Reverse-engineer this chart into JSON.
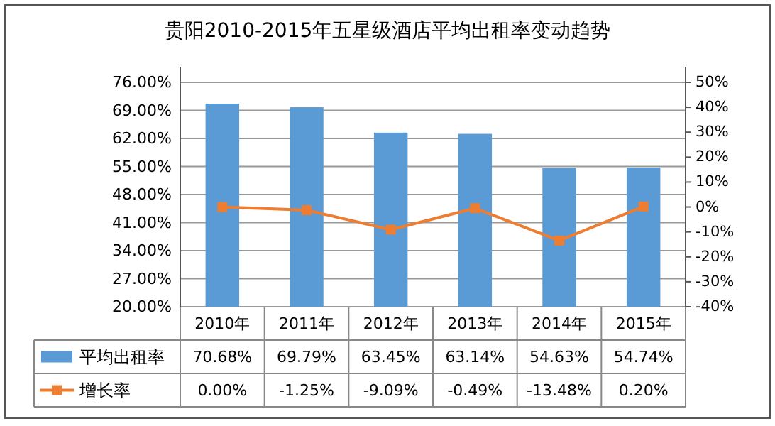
{
  "chart_data": {
    "type": "bar",
    "title": "贵阳2010-2015年五星级酒店平均出租率变动趋势",
    "categories": [
      "2010年",
      "2011年",
      "2012年",
      "2013年",
      "2014年",
      "2015年"
    ],
    "series": [
      {
        "name": "平均出租率",
        "color": "#5b9bd5",
        "values": [
          70.68,
          69.79,
          63.45,
          63.14,
          54.63,
          54.74
        ],
        "value_labels": [
          "70.68%",
          "69.79%",
          "63.45%",
          "63.14%",
          "54.63%",
          "54.74%"
        ]
      },
      {
        "name": "增长率",
        "type": "line",
        "axis": "y2",
        "color": "#ed7d31",
        "values": [
          0.0,
          -1.25,
          -9.09,
          -0.49,
          -13.48,
          0.2
        ],
        "value_labels": [
          "0.00%",
          "-1.25%",
          "-9.09%",
          "-0.49%",
          "-13.48%",
          "0.20%"
        ]
      }
    ],
    "ylim": [
      20,
      76
    ],
    "yticks": [
      {
        "value": 20,
        "label": "20.00%"
      },
      {
        "value": 27,
        "label": "27.00%"
      },
      {
        "value": 34,
        "label": "34.00%"
      },
      {
        "value": 41,
        "label": "41.00%"
      },
      {
        "value": 48,
        "label": "48.00%"
      },
      {
        "value": 55,
        "label": "55.00%"
      },
      {
        "value": 62,
        "label": "62.00%"
      },
      {
        "value": 69,
        "label": "69.00%"
      },
      {
        "value": 76,
        "label": "76.00%"
      }
    ],
    "y2lim": [
      -40,
      50
    ],
    "y2ticks": [
      {
        "value": -40,
        "label": "-40%"
      },
      {
        "value": -30,
        "label": "-30%"
      },
      {
        "value": -20,
        "label": "-20%"
      },
      {
        "value": -10,
        "label": "-10%"
      },
      {
        "value": 0,
        "label": "0%"
      },
      {
        "value": 10,
        "label": "10%"
      },
      {
        "value": 20,
        "label": "20%"
      },
      {
        "value": 30,
        "label": "30%"
      },
      {
        "value": 40,
        "label": "40%"
      },
      {
        "value": 50,
        "label": "50%"
      }
    ],
    "grid": "y",
    "legend": "bottom",
    "marker": "square",
    "line_style": "solid"
  }
}
